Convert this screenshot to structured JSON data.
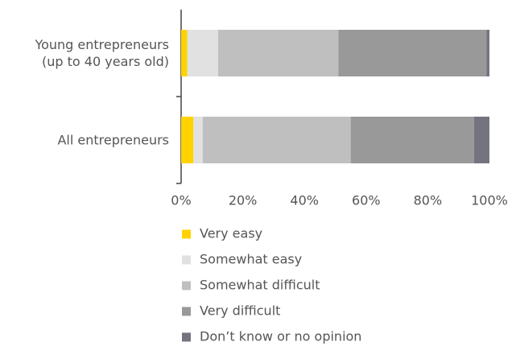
{
  "chart_data": {
    "type": "stacked-barh",
    "categories": [
      "Young entrepreneurs\n(up to 40 years old)",
      "All entrepreneurs"
    ],
    "series": [
      {
        "name": "Very easy",
        "color": "#ffd200",
        "values": [
          2,
          4
        ]
      },
      {
        "name": "Somewhat easy",
        "color": "#e1e1e1",
        "values": [
          10,
          3
        ]
      },
      {
        "name": "Somewhat difficult",
        "color": "#bfbfbf",
        "values": [
          39,
          48
        ]
      },
      {
        "name": "Very difficult",
        "color": "#999999",
        "values": [
          48,
          40
        ]
      },
      {
        "name": "Don’t know or no opinion",
        "color": "#747480",
        "values": [
          1,
          5
        ]
      }
    ],
    "xlim": [
      0,
      100
    ],
    "xticks": [
      {
        "value": 0,
        "label": "0%"
      },
      {
        "value": 20,
        "label": "20%"
      },
      {
        "value": 40,
        "label": "40%"
      },
      {
        "value": 60,
        "label": "60%"
      },
      {
        "value": 80,
        "label": "80%"
      },
      {
        "value": 100,
        "label": "100%"
      }
    ],
    "grid": false
  }
}
